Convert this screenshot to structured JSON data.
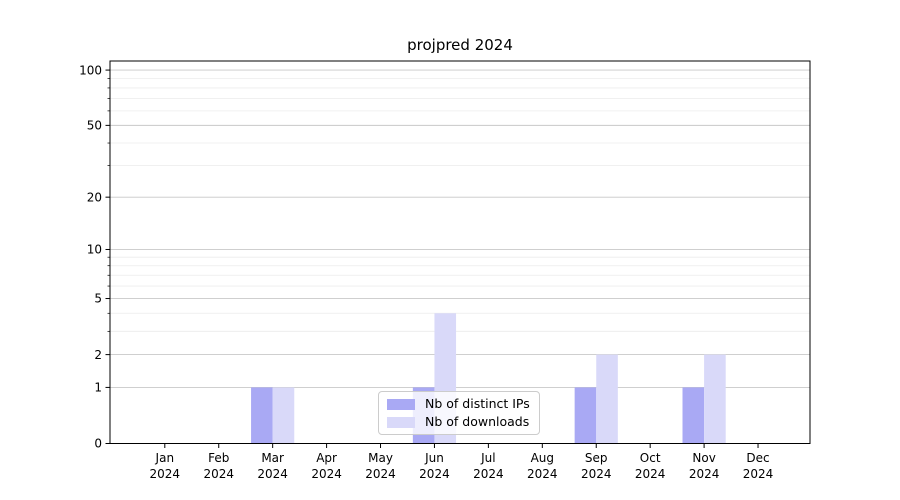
{
  "chart_data": {
    "type": "bar",
    "title": "projpred 2024",
    "months": [
      "Jan",
      "Feb",
      "Mar",
      "Apr",
      "May",
      "Jun",
      "Jul",
      "Aug",
      "Sep",
      "Oct",
      "Nov",
      "Dec"
    ],
    "year": "2024",
    "series": [
      {
        "name": "Nb of distinct IPs",
        "color": "#a9a9f4",
        "values": [
          0,
          0,
          1,
          0,
          0,
          1,
          0,
          0,
          1,
          0,
          1,
          0
        ]
      },
      {
        "name": "Nb of downloads",
        "color": "#d9d9f9",
        "values": [
          0,
          0,
          1,
          0,
          0,
          4,
          0,
          0,
          2,
          0,
          2,
          0
        ]
      }
    ],
    "y_axis": {
      "scale": "log10(1+y)",
      "major_ticks": [
        0,
        1,
        2,
        5,
        10,
        20,
        50,
        100
      ],
      "minor_gridlines": [
        3,
        4,
        6,
        7,
        8,
        9,
        30,
        40,
        60,
        70,
        80,
        90
      ],
      "ylim": [
        0,
        112
      ]
    },
    "grid": {
      "major_color": "#c8c8c8",
      "minor_color": "#ececec"
    },
    "axis_color": "#000000",
    "legend": {
      "position": "lower-center-inside"
    }
  }
}
